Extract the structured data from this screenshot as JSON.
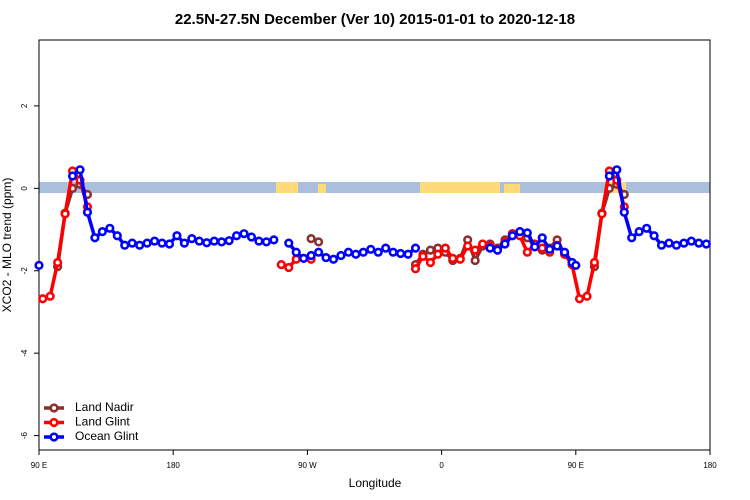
{
  "chart_data": {
    "type": "line",
    "title": "22.5N-27.5N December (Ver 10)   2015-01-01 to 2020-12-18",
    "x_label": "Longitude",
    "y_label": "XCO2 - MLO trend (ppm)",
    "xlim": [
      90,
      540
    ],
    "xticks": [
      {
        "value": 90,
        "label": "90 E"
      },
      180,
      {
        "value": 270,
        "label": "90 W"
      },
      {
        "value": 360,
        "label": "0"
      },
      {
        "value": 450,
        "label": "90 E"
      },
      {
        "value": 540,
        "label": "180"
      }
    ],
    "ylim": [
      -6.35,
      3.6
    ],
    "yticks": [
      2,
      0,
      -2,
      -4,
      -6
    ],
    "legend": "bottom-left",
    "series": [
      {
        "name": "Land Nadir",
        "color": "#8b2f2f",
        "x": [
          102.5,
          107.5,
          112.5,
          117.5,
          122.5,
          null,
          272.5,
          277.5,
          null,
          342.5,
          347.5,
          352.5,
          357.5,
          362.5,
          367.5,
          372.5,
          377.5,
          382.5,
          387.5,
          392.5,
          397.5,
          402.5,
          407.5,
          412.5,
          417.5,
          422.5,
          427.5,
          432.5,
          437.5,
          442.5,
          447.5,
          null,
          462.5,
          467.5,
          472.5,
          477.5,
          482.5
        ],
        "values": [
          -1.9,
          -0.6,
          0.0,
          0.1,
          -0.15,
          null,
          -1.22,
          -1.3,
          null,
          -1.85,
          -1.6,
          -1.5,
          -1.45,
          -1.55,
          -1.75,
          -1.7,
          -1.25,
          -1.75,
          -1.4,
          -1.35,
          -1.45,
          -1.25,
          -1.1,
          -1.05,
          -1.2,
          -1.4,
          -1.5,
          -1.45,
          -1.25,
          -1.6,
          -1.8,
          null,
          -1.9,
          -0.6,
          0.0,
          0.1,
          -0.15
        ]
      },
      {
        "name": "Land Glint",
        "color": "#ff0000",
        "x": [
          92.5,
          97.5,
          102.5,
          107.5,
          112.5,
          117.5,
          122.5,
          null,
          252.5,
          257.5,
          262.5,
          null,
          272.5,
          null,
          342.5,
          347.5,
          352.5,
          357.5,
          362.5,
          367.5,
          372.5,
          377.5,
          382.5,
          387.5,
          392.5,
          397.5,
          402.5,
          407.5,
          412.5,
          417.5,
          422.5,
          427.5,
          432.5,
          437.5,
          442.5,
          447.5,
          452.5,
          457.5,
          462.5,
          467.5,
          472.5,
          477.5,
          482.5
        ],
        "values": [
          -2.68,
          -2.62,
          -1.8,
          -0.62,
          0.42,
          0.2,
          -0.45,
          null,
          -1.85,
          -1.92,
          -1.72,
          null,
          -1.72,
          null,
          -1.95,
          -1.65,
          -1.8,
          -1.6,
          -1.45,
          -1.7,
          -1.72,
          -1.4,
          -1.5,
          -1.35,
          -1.4,
          -1.5,
          -1.3,
          -1.1,
          -1.15,
          -1.55,
          -1.35,
          -1.45,
          -1.55,
          -1.38,
          -1.6,
          -1.85,
          -2.68,
          -2.62,
          -1.8,
          -0.62,
          0.42,
          0.2,
          -0.45
        ]
      },
      {
        "name": "Ocean Glint",
        "color": "#0000ff",
        "x": [
          90,
          null,
          112.5,
          117.5,
          122.5,
          127.5,
          132.5,
          137.5,
          142.5,
          147.5,
          152.5,
          157.5,
          162.5,
          167.5,
          172.5,
          177.5,
          182.5,
          187.5,
          192.5,
          197.5,
          202.5,
          207.5,
          212.5,
          217.5,
          222.5,
          227.5,
          232.5,
          237.5,
          242.5,
          247.5,
          null,
          257.5,
          262.5,
          267.5,
          272.5,
          277.5,
          282.5,
          287.5,
          292.5,
          297.5,
          302.5,
          307.5,
          312.5,
          317.5,
          322.5,
          327.5,
          332.5,
          337.5,
          342.5,
          null,
          392.5,
          397.5,
          402.5,
          407.5,
          412.5,
          417.5,
          422.5,
          427.5,
          432.5,
          437.5,
          442.5,
          447.5,
          450,
          null,
          472.5,
          477.5,
          482.5,
          487.5,
          492.5,
          497.5,
          502.5,
          507.5,
          512.5,
          517.5,
          522.5,
          527.5,
          532.5,
          537.5
        ],
        "values": [
          -1.87,
          null,
          0.3,
          0.45,
          -0.58,
          -1.2,
          -1.05,
          -0.97,
          -1.15,
          -1.38,
          -1.33,
          -1.38,
          -1.33,
          -1.28,
          -1.33,
          -1.35,
          -1.15,
          -1.33,
          -1.22,
          -1.28,
          -1.32,
          -1.28,
          -1.3,
          -1.27,
          -1.15,
          -1.1,
          -1.18,
          -1.28,
          -1.3,
          -1.25,
          null,
          -1.33,
          -1.55,
          -1.7,
          -1.63,
          -1.55,
          -1.68,
          -1.72,
          -1.63,
          -1.55,
          -1.6,
          -1.55,
          -1.48,
          -1.55,
          -1.45,
          -1.55,
          -1.58,
          -1.6,
          -1.45,
          null,
          -1.45,
          -1.5,
          -1.35,
          -1.15,
          -1.05,
          -1.08,
          -1.42,
          -1.2,
          -1.48,
          -1.4,
          -1.55,
          -1.8,
          -1.87,
          null,
          0.3,
          0.45,
          -0.58,
          -1.2,
          -1.05,
          -0.97,
          -1.15,
          -1.38,
          -1.33,
          -1.38,
          -1.33,
          -1.28,
          -1.33,
          -1.35
        ]
      }
    ]
  }
}
